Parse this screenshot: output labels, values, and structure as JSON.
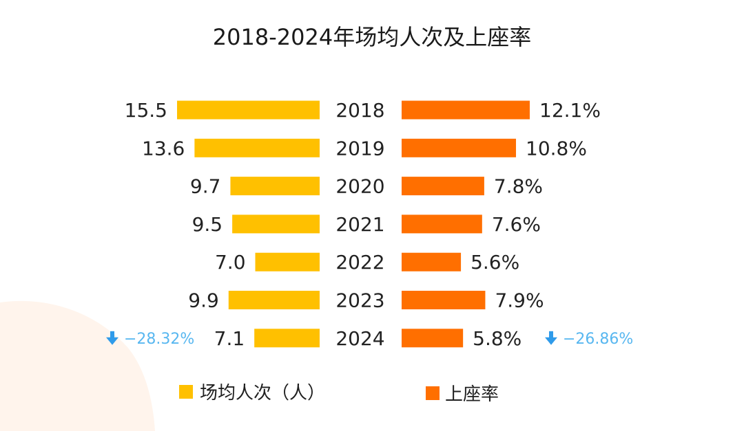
{
  "chart_data": {
    "type": "bar",
    "title": "2018-2024年场均人次及上座率",
    "categories": [
      "2018",
      "2019",
      "2020",
      "2021",
      "2022",
      "2023",
      "2024"
    ],
    "series": [
      {
        "name": "场均人次（人）",
        "values": [
          15.5,
          13.6,
          9.7,
          9.5,
          7.0,
          9.9,
          7.1
        ],
        "labels": [
          "15.5",
          "13.6",
          "9.7",
          "9.5",
          "7.0",
          "9.9",
          "7.1"
        ],
        "color": "#FFC000",
        "change": {
          "text": "−28.32%",
          "direction": "down"
        }
      },
      {
        "name": "上座率",
        "values": [
          12.1,
          10.8,
          7.8,
          7.6,
          5.6,
          7.9,
          5.8
        ],
        "labels": [
          "12.1%",
          "10.8%",
          "7.8%",
          "7.6%",
          "5.6%",
          "7.9%",
          "5.8%"
        ],
        "color": "#FF6F00",
        "change": {
          "text": "−26.86%",
          "direction": "down"
        }
      }
    ],
    "legend": "bottom"
  },
  "colors": {
    "change_text": "#58B7F0",
    "change_arrow": "#2F9BEA"
  }
}
